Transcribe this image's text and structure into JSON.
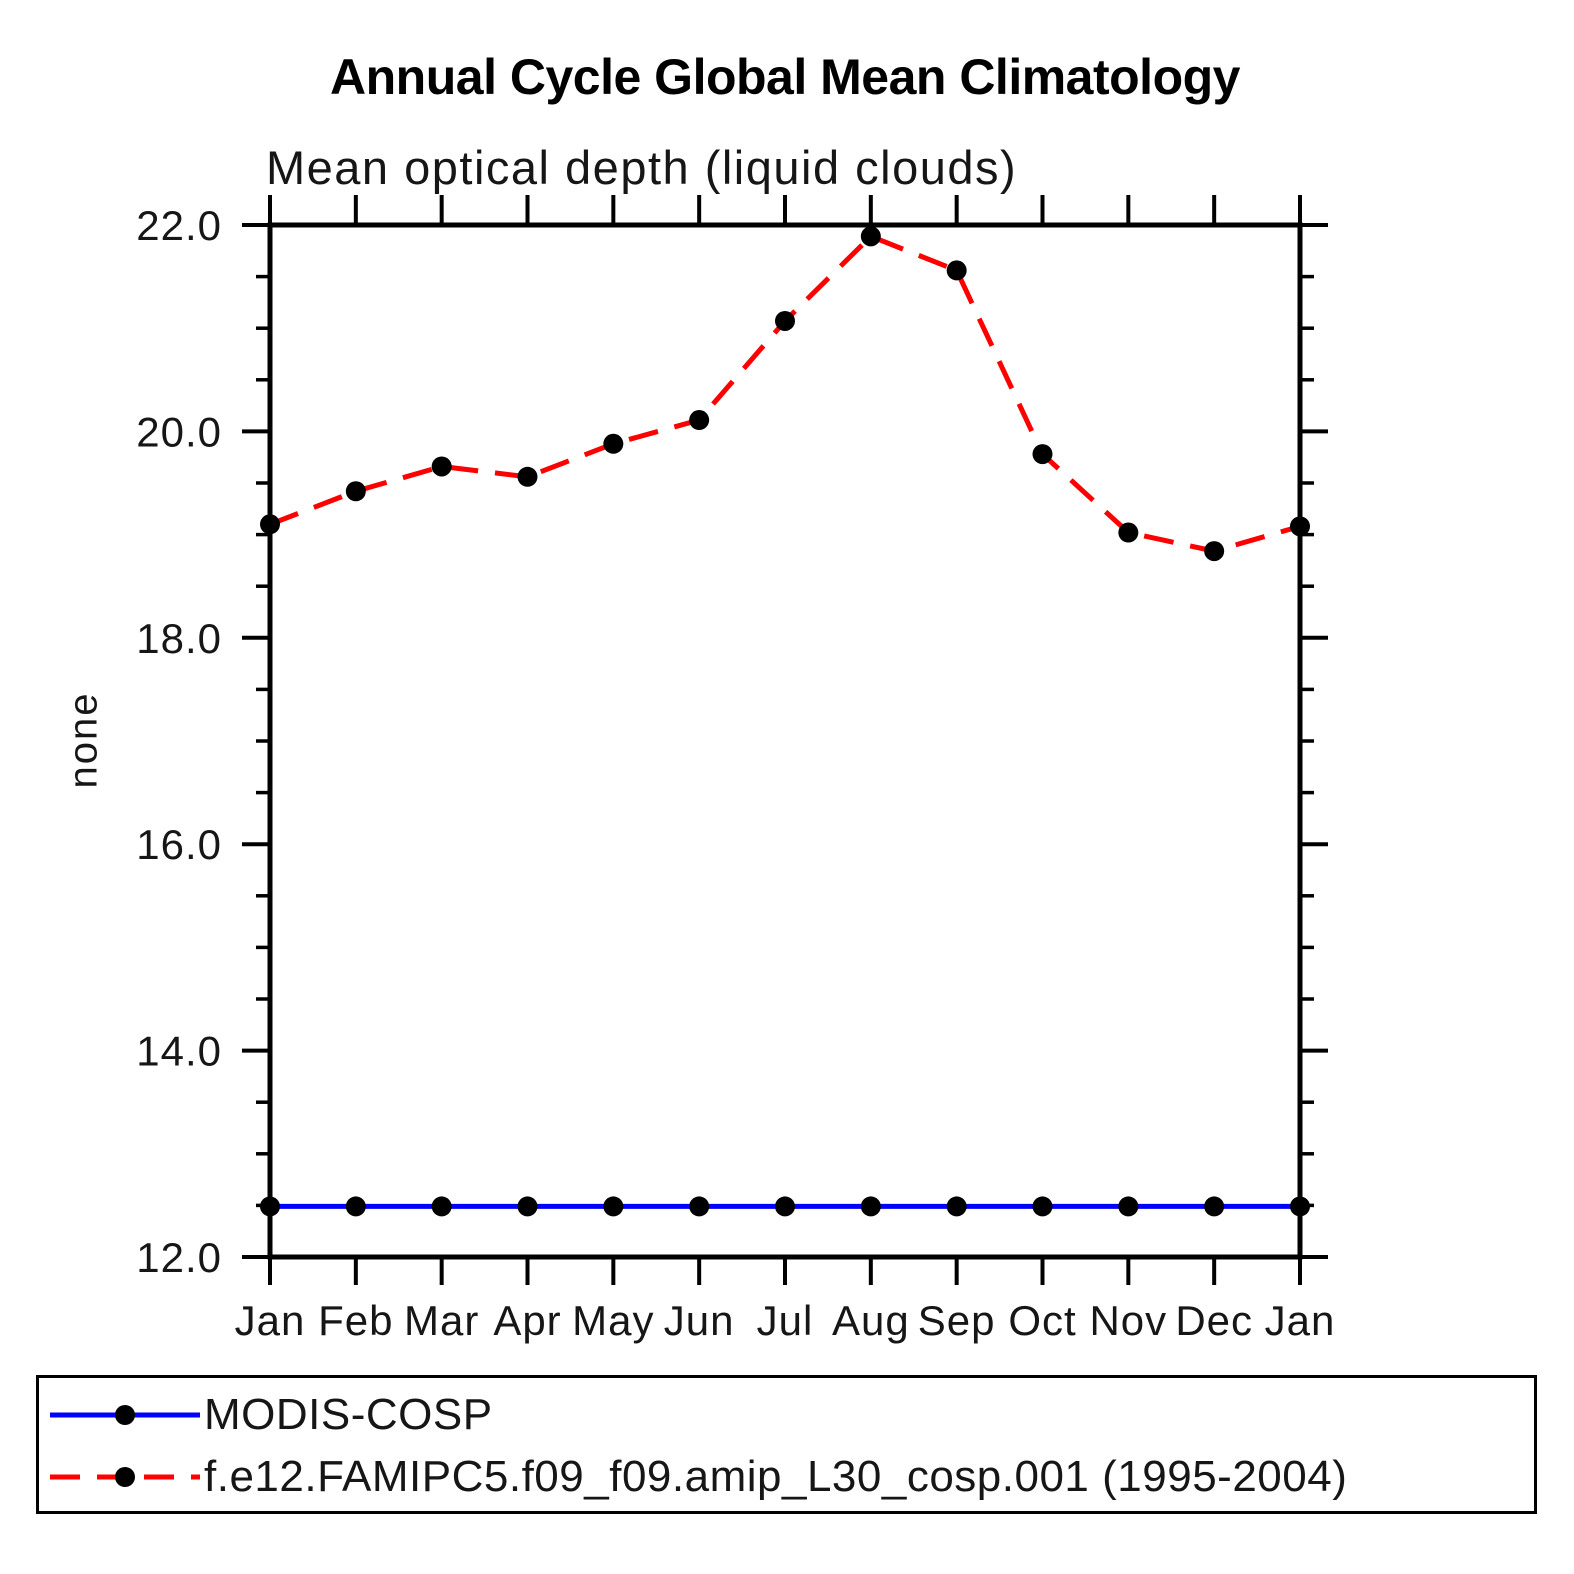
{
  "header": {
    "title": "Annual Cycle Global Mean Climatology",
    "subtitle": "Mean optical depth (liquid clouds)"
  },
  "chart_data": {
    "type": "line",
    "title": "Annual Cycle Global Mean Climatology",
    "subtitle": "Mean optical depth (liquid clouds)",
    "xlabel": "",
    "ylabel": "none",
    "x_categories": [
      "Jan",
      "Feb",
      "Mar",
      "Apr",
      "May",
      "Jun",
      "Jul",
      "Aug",
      "Sep",
      "Oct",
      "Nov",
      "Dec",
      "Jan"
    ],
    "ylim": [
      12.0,
      22.0
    ],
    "y_major_ticks": [
      12.0,
      14.0,
      16.0,
      18.0,
      20.0,
      22.0
    ],
    "y_tick_labels": [
      "12.0",
      "14.0",
      "16.0",
      "18.0",
      "20.0",
      "22.0"
    ],
    "y_minor_step": 0.5,
    "grid": false,
    "legend_position": "bottom",
    "colors": {
      "axis": "#000000",
      "marker": "#000000",
      "obs_line": "#0000ff",
      "model_line": "#ff0000"
    },
    "series": [
      {
        "name": "MODIS-COSP",
        "color": "#0000ff",
        "line_style": "solid",
        "marker": "circle",
        "values": [
          12.49,
          12.49,
          12.49,
          12.49,
          12.49,
          12.49,
          12.49,
          12.49,
          12.49,
          12.49,
          12.49,
          12.49,
          12.49
        ]
      },
      {
        "name": "f.e12.FAMIPC5.f09_f09.amip_L30_cosp.001 (1995-2004)",
        "color": "#ff0000",
        "line_style": "dashed",
        "marker": "circle",
        "values": [
          19.1,
          19.42,
          19.66,
          19.56,
          19.88,
          20.11,
          21.07,
          21.89,
          21.56,
          19.78,
          19.02,
          18.84,
          19.08
        ]
      }
    ]
  }
}
